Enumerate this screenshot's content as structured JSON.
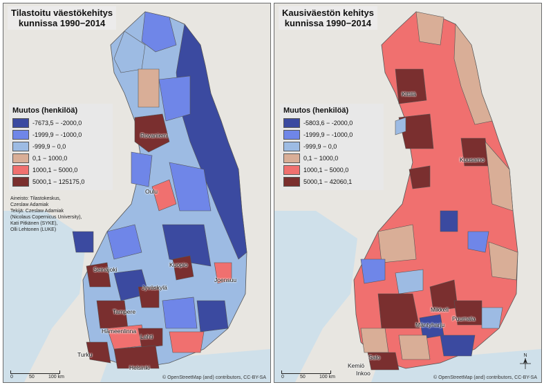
{
  "left_map": {
    "title_line1": "Tilastoitu väestökehitys",
    "title_line2": "kunnissa 1990−2014",
    "legend_title": "Muutos (henkilöä)",
    "legend": [
      {
        "label": "-7673,5 − -2000,0",
        "color": "#3b4aa0"
      },
      {
        "label": "-1999,9 − -1000,0",
        "color": "#6f86e8"
      },
      {
        "label": "-999,9 − 0,0",
        "color": "#9dbbe3"
      },
      {
        "label": "0,1 − 1000,0",
        "color": "#d9ae97"
      },
      {
        "label": "1000,1 − 5000,0",
        "color": "#f0706f"
      },
      {
        "label": "5000,1 − 125175,0",
        "color": "#7a2f2f"
      }
    ],
    "credits": [
      "Aineisto: Tilastokeskus,",
      "Czeslaw Adamiak",
      "Tekijä: Czeslaw Adamiak",
      "(Nicolaus Copernicus University),",
      "Kati Pitkänen (SYKE),",
      "Olli Lehtonen (LUKE)"
    ],
    "cities": [
      "Rovaniemi",
      "Oulu",
      "Seinäjoki",
      "Kuopio",
      "Joensuu",
      "Jyväskylä",
      "Tampere",
      "Hämeenlinna",
      "Lahti",
      "Turku",
      "Helsinki"
    ],
    "scale": [
      "0",
      "50",
      "100 km"
    ],
    "attribution": "© OpenStreetMap (and) contributors, CC-BY-SA"
  },
  "right_map": {
    "title_line1": "Kausiväestön kehitys",
    "title_line2": "kunnissa 1990−2014",
    "legend_title": "Muutos (henkilöä)",
    "legend": [
      {
        "label": "-5803,6 − -2000,0",
        "color": "#3b4aa0"
      },
      {
        "label": "-1999,9 − -1000,0",
        "color": "#6f86e8"
      },
      {
        "label": "-999,9 − 0,0",
        "color": "#9dbbe3"
      },
      {
        "label": "0,1 − 1000,0",
        "color": "#d9ae97"
      },
      {
        "label": "1000,1 − 5000,0",
        "color": "#f0706f"
      },
      {
        "label": "5000,1 − 42060,1",
        "color": "#7a2f2f"
      }
    ],
    "cities": [
      "Kittilä",
      "Kuusamo",
      "Mikkeli",
      "Puumala",
      "Mäntyharju",
      "Salo",
      "Kemiö",
      "Inkoo"
    ],
    "scale": [
      "0",
      "50",
      "100 km"
    ],
    "attribution": "© OpenStreetMap (and) contributors, CC-BY-SA",
    "north_label": "N"
  }
}
